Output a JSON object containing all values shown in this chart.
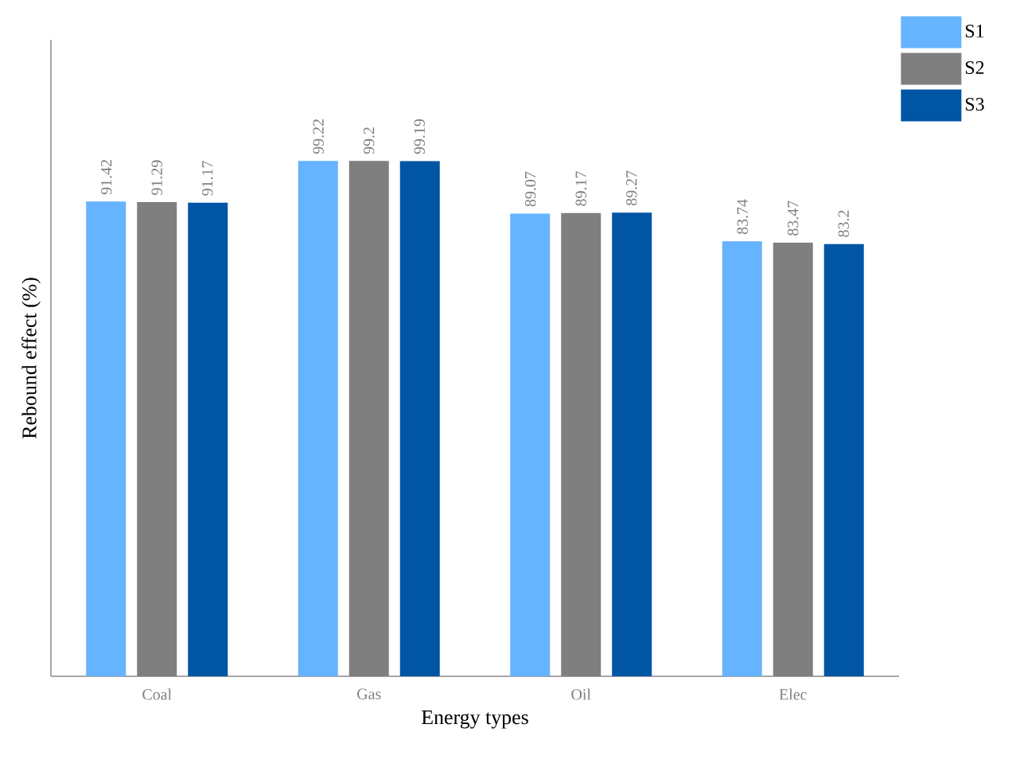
{
  "chart_data": {
    "type": "bar",
    "xlabel": "Energy types",
    "ylabel": "Rebound effect (%)",
    "categories": [
      "Coal",
      "Gas",
      "Oil",
      "Elec"
    ],
    "series": [
      {
        "name": "S1",
        "color": "#66b3ff",
        "values": [
          91.42,
          99.22,
          89.07,
          83.74
        ],
        "value_labels": [
          "91.42",
          "99.22",
          "89.07",
          "83.74"
        ]
      },
      {
        "name": "S2",
        "color": "#7f7f7f",
        "values": [
          91.29,
          99.2,
          89.17,
          83.47
        ],
        "value_labels": [
          "91.29",
          "99.2",
          "89.17",
          "83.47"
        ]
      },
      {
        "name": "S3",
        "color": "#0055a5",
        "values": [
          91.17,
          99.19,
          89.27,
          83.2
        ],
        "value_labels": [
          "91.17",
          "99.19",
          "89.27",
          "83.2"
        ]
      }
    ],
    "legend": "top right",
    "grid": false,
    "tick_labels": "x"
  }
}
